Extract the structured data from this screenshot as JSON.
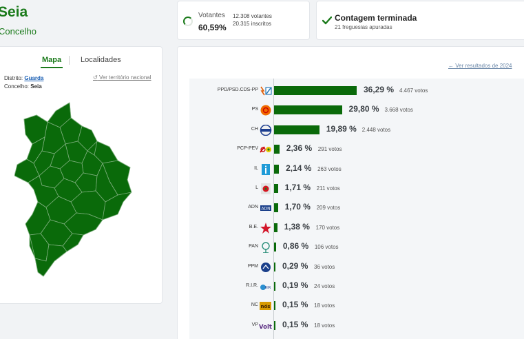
{
  "header": {
    "title": "Seia",
    "subtitle": "Concelho"
  },
  "turnout": {
    "label": "Votantes",
    "percent": "60,59%",
    "votes": "12.308 votantes",
    "registered": "20.315 inscritos"
  },
  "count_status": {
    "title": "Contagem terminada",
    "subtitle": "21 freguesias apuradas"
  },
  "map_panel": {
    "tabs": [
      {
        "label": "Mapa"
      },
      {
        "label": "Localidades"
      }
    ],
    "district_label": "Distrito:",
    "district_value": "Guarda",
    "county_label": "Concelho:",
    "county_value": "Seia",
    "national_link": "Ver território nacional",
    "map_color": "#0a6a0a"
  },
  "results": {
    "previous_link": "← Ver resultados de 2024",
    "bar_color": "#0a6a0a",
    "max_percent": 36.29,
    "parties": [
      {
        "name": "PPD/PSD.CDS-PP",
        "percent": 36.29,
        "percent_label": "36,29 %",
        "votes_label": "4.467 votos",
        "logo": "ad-logo"
      },
      {
        "name": "PS",
        "percent": 29.8,
        "percent_label": "29,80 %",
        "votes_label": "3.668 votos",
        "logo": "ps-logo"
      },
      {
        "name": "CH",
        "percent": 19.89,
        "percent_label": "19,89 %",
        "votes_label": "2.448 votos",
        "logo": "ch-logo"
      },
      {
        "name": "PCP-PEV",
        "percent": 2.36,
        "percent_label": "2,36 %",
        "votes_label": "291 votos",
        "logo": "cdu-logo"
      },
      {
        "name": "IL",
        "percent": 2.14,
        "percent_label": "2,14 %",
        "votes_label": "263 votos",
        "logo": "il-logo"
      },
      {
        "name": "L",
        "percent": 1.71,
        "percent_label": "1,71 %",
        "votes_label": "211 votos",
        "logo": "livre-logo"
      },
      {
        "name": "ADN",
        "percent": 1.7,
        "percent_label": "1,70 %",
        "votes_label": "209 votos",
        "logo": "adn-logo"
      },
      {
        "name": "B.E.",
        "percent": 1.38,
        "percent_label": "1,38 %",
        "votes_label": "170 votos",
        "logo": "be-logo"
      },
      {
        "name": "PAN",
        "percent": 0.86,
        "percent_label": "0,86 %",
        "votes_label": "106 votos",
        "logo": "pan-logo"
      },
      {
        "name": "PPM",
        "percent": 0.29,
        "percent_label": "0,29 %",
        "votes_label": "36 votos",
        "logo": "ppm-logo"
      },
      {
        "name": "R.I.R.",
        "percent": 0.19,
        "percent_label": "0,19 %",
        "votes_label": "24 votos",
        "logo": "rir-logo"
      },
      {
        "name": "NC",
        "percent": 0.15,
        "percent_label": "0,15 %",
        "votes_label": "18 votos",
        "logo": "nc-logo"
      },
      {
        "name": "VP",
        "percent": 0.15,
        "percent_label": "0,15 %",
        "votes_label": "18 votos",
        "logo": "volt-logo"
      }
    ]
  }
}
